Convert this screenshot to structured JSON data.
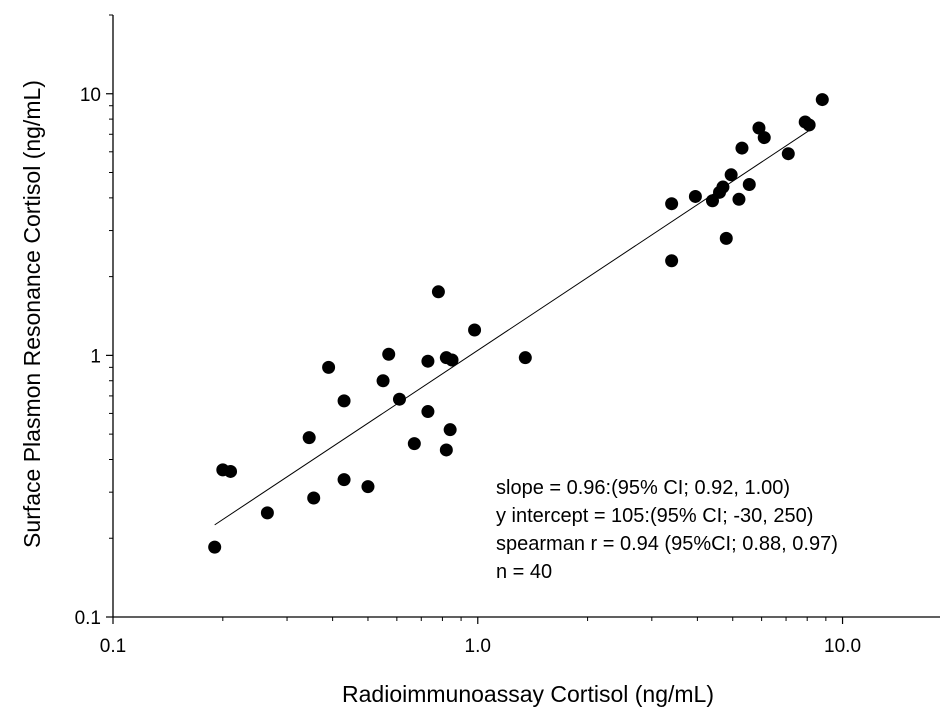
{
  "chart_data": {
    "type": "scatter",
    "title": "",
    "xlabel": "Radioimmunoassay Cortisol (ng/mL)",
    "ylabel": "Surface Plasmon Resonance Cortisol (ng/mL)",
    "xscale": "log",
    "yscale": "log",
    "xlim": [
      0.1,
      18.5
    ],
    "ylim": [
      0.1,
      20
    ],
    "grid": false,
    "legend": "none",
    "x_ticks": [
      {
        "value": 0.1,
        "label": "0.1"
      },
      {
        "value": 1.0,
        "label": "1.0"
      },
      {
        "value": 10.0,
        "label": "10.0"
      }
    ],
    "y_ticks": [
      {
        "value": 0.1,
        "label": "0.1"
      },
      {
        "value": 1,
        "label": "1"
      },
      {
        "value": 10,
        "label": "10"
      }
    ],
    "points": [
      {
        "x": 0.19,
        "y": 0.185
      },
      {
        "x": 0.2,
        "y": 0.365
      },
      {
        "x": 0.21,
        "y": 0.36
      },
      {
        "x": 0.265,
        "y": 0.25
      },
      {
        "x": 0.345,
        "y": 0.485
      },
      {
        "x": 0.355,
        "y": 0.285
      },
      {
        "x": 0.39,
        "y": 0.9
      },
      {
        "x": 0.43,
        "y": 0.67
      },
      {
        "x": 0.43,
        "y": 0.335
      },
      {
        "x": 0.5,
        "y": 0.315
      },
      {
        "x": 0.55,
        "y": 0.8
      },
      {
        "x": 0.57,
        "y": 1.01
      },
      {
        "x": 0.61,
        "y": 0.68
      },
      {
        "x": 0.67,
        "y": 0.46
      },
      {
        "x": 0.73,
        "y": 0.95
      },
      {
        "x": 0.73,
        "y": 0.61
      },
      {
        "x": 0.78,
        "y": 1.75
      },
      {
        "x": 0.82,
        "y": 0.98
      },
      {
        "x": 0.82,
        "y": 0.435
      },
      {
        "x": 0.84,
        "y": 0.52
      },
      {
        "x": 0.85,
        "y": 0.96
      },
      {
        "x": 0.98,
        "y": 1.25
      },
      {
        "x": 1.35,
        "y": 0.98
      },
      {
        "x": 3.4,
        "y": 3.8
      },
      {
        "x": 3.4,
        "y": 2.3
      },
      {
        "x": 3.95,
        "y": 4.05
      },
      {
        "x": 4.4,
        "y": 3.9
      },
      {
        "x": 4.6,
        "y": 4.2
      },
      {
        "x": 4.7,
        "y": 4.4
      },
      {
        "x": 4.8,
        "y": 2.8
      },
      {
        "x": 4.95,
        "y": 4.9
      },
      {
        "x": 5.2,
        "y": 3.95
      },
      {
        "x": 5.3,
        "y": 6.2
      },
      {
        "x": 5.55,
        "y": 4.5
      },
      {
        "x": 5.9,
        "y": 7.4
      },
      {
        "x": 6.1,
        "y": 6.8
      },
      {
        "x": 7.1,
        "y": 5.9
      },
      {
        "x": 7.9,
        "y": 7.8
      },
      {
        "x": 8.1,
        "y": 7.6
      },
      {
        "x": 8.8,
        "y": 9.5
      }
    ],
    "regression_line": {
      "x": [
        0.19,
        8.3
      ],
      "y": [
        0.225,
        7.4
      ]
    },
    "annotations": [
      "slope = 0.96:(95% CI; 0.92, 1.00)",
      "y intercept = 105:(95% CI; -30, 250)",
      "spearman r = 0.94 (95%CI; 0.88, 0.97)",
      "n = 40"
    ]
  }
}
